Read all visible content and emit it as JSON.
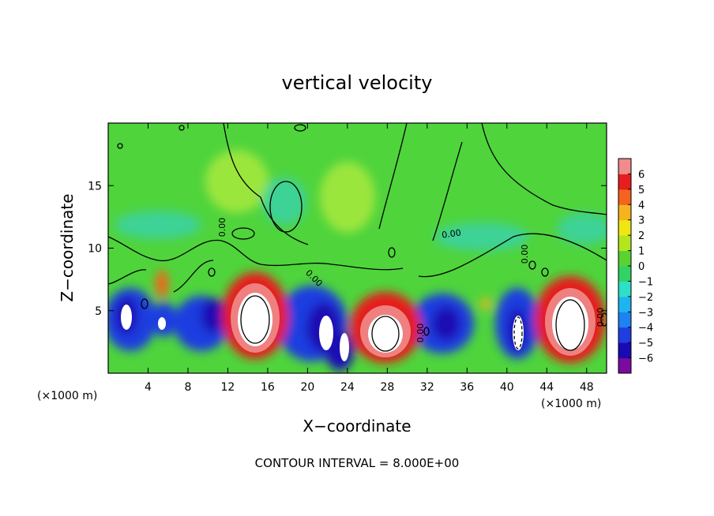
{
  "chart_data": {
    "type": "heatmap",
    "title": "vertical velocity",
    "xlabel": "X−coordinate",
    "ylabel": "Z−coordinate",
    "x_unit": "(×1000 m)",
    "x_unit_right": "(×1000 m)",
    "xlim": [
      0,
      50
    ],
    "ylim": [
      0,
      20
    ],
    "x_ticks": [
      4,
      8,
      12,
      16,
      20,
      24,
      28,
      32,
      36,
      40,
      44,
      48
    ],
    "y_ticks": [
      5,
      10,
      15
    ],
    "x_tick_labels": [
      "4",
      "8",
      "12",
      "16",
      "20",
      "24",
      "28",
      "32",
      "36",
      "40",
      "44",
      "48"
    ],
    "y_tick_labels": [
      "5",
      "10",
      "15"
    ],
    "colorbar": {
      "min": -6,
      "max": 6,
      "tick_labels": [
        "6",
        "5",
        "4",
        "3",
        "2",
        "1",
        "0",
        "−1",
        "−2",
        "−3",
        "−4",
        "−5",
        "−6"
      ],
      "colors": [
        "#7a0aa0",
        "#1a0ab4",
        "#1e3ee0",
        "#1e82f0",
        "#1eb4f0",
        "#2de0c8",
        "#32d264",
        "#5ad232",
        "#b4e61e",
        "#f0e614",
        "#f5b41e",
        "#f5641e",
        "#e61e1e",
        "#f08c8c"
      ]
    },
    "contour_label": "0.00",
    "footer": "CONTOUR INTERVAL = 8.000E+00",
    "features": [
      {
        "kind": "updraft",
        "x": 15.5,
        "z": 4.6,
        "value": 8
      },
      {
        "kind": "updraft",
        "x": 27.0,
        "z": 3.4,
        "value": 8
      },
      {
        "kind": "updraft",
        "x": 46.5,
        "z": 4.0,
        "value": 8
      },
      {
        "kind": "downdraft",
        "x": 2.0,
        "z": 4.5,
        "value": -6
      },
      {
        "kind": "downdraft",
        "x": 5.5,
        "z": 4.3,
        "value": -6
      },
      {
        "kind": "downdraft",
        "x": 10.0,
        "z": 5.0,
        "value": -5
      },
      {
        "kind": "downdraft",
        "x": 21.5,
        "z": 3.5,
        "value": -6
      },
      {
        "kind": "downdraft",
        "x": 23.8,
        "z": 2.5,
        "value": -6
      },
      {
        "kind": "downdraft",
        "x": 33.5,
        "z": 3.8,
        "value": -6
      },
      {
        "kind": "downdraft",
        "x": 41.0,
        "z": 3.4,
        "value": -6
      }
    ]
  }
}
